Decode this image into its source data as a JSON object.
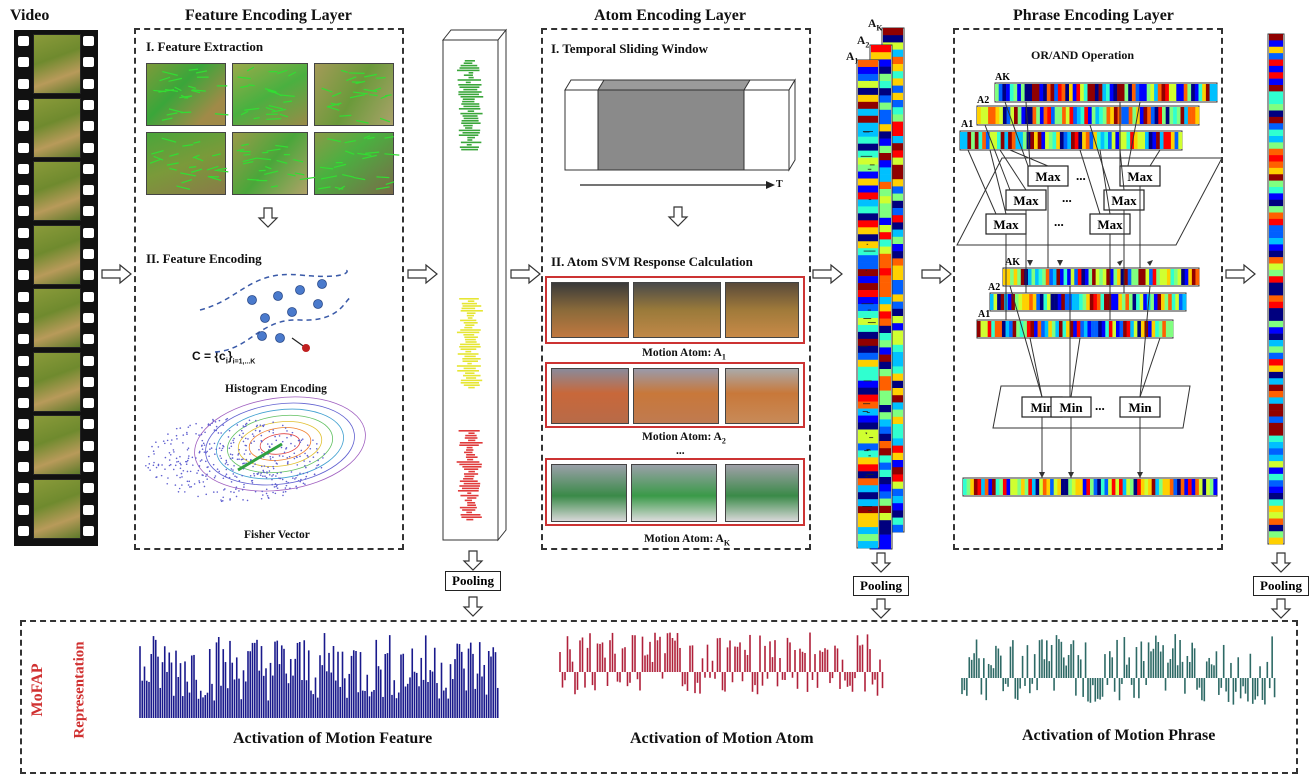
{
  "video_label": "Video",
  "feature_layer": {
    "title": "Feature Encoding Layer",
    "step1": "I. Feature Extraction",
    "step2": "II. Feature Encoding",
    "codebook": "C = {c",
    "codebook_sub": "i",
    "codebook_tail": "}",
    "codebook_range": "i=1,...K",
    "hist_caption": "Histogram Encoding",
    "fisher_caption": "Fisher Vector"
  },
  "atom_layer": {
    "title": "Atom Encoding Layer",
    "step1": "I. Temporal Sliding Window",
    "axis_label": "T",
    "step2": "II. Atom SVM Response Calculation",
    "atoms": [
      {
        "caption": "Motion Atom: A",
        "sub": "1"
      },
      {
        "caption": "Motion Atom: A",
        "sub": "2"
      },
      {
        "caption": "Motion Atom: A",
        "sub": "K"
      }
    ],
    "ellipsis": "..."
  },
  "atom_stack_labels": [
    {
      "base": "A",
      "sub": "K"
    },
    {
      "base": "A",
      "sub": "2"
    },
    {
      "base": "A",
      "sub": "1"
    }
  ],
  "phrase_layer": {
    "title": "Phrase Encoding Layer",
    "operation": "OR/AND Operation",
    "max_label": "Max",
    "min_label": "Min",
    "ellipsis": "..."
  },
  "pooling_label": "Pooling",
  "mofap": {
    "side_label_1": "MoFAP",
    "side_label_2": "Representation",
    "captions": [
      "Activation of Motion Feature",
      "Activation of Motion Atom",
      "Activation of Motion Phrase"
    ],
    "colors": [
      "#1a1a8c",
      "#b0203a",
      "#2e6a66"
    ]
  },
  "histogram_colors": [
    "#3aa63a",
    "#e6e633",
    "#e03a3a"
  ]
}
